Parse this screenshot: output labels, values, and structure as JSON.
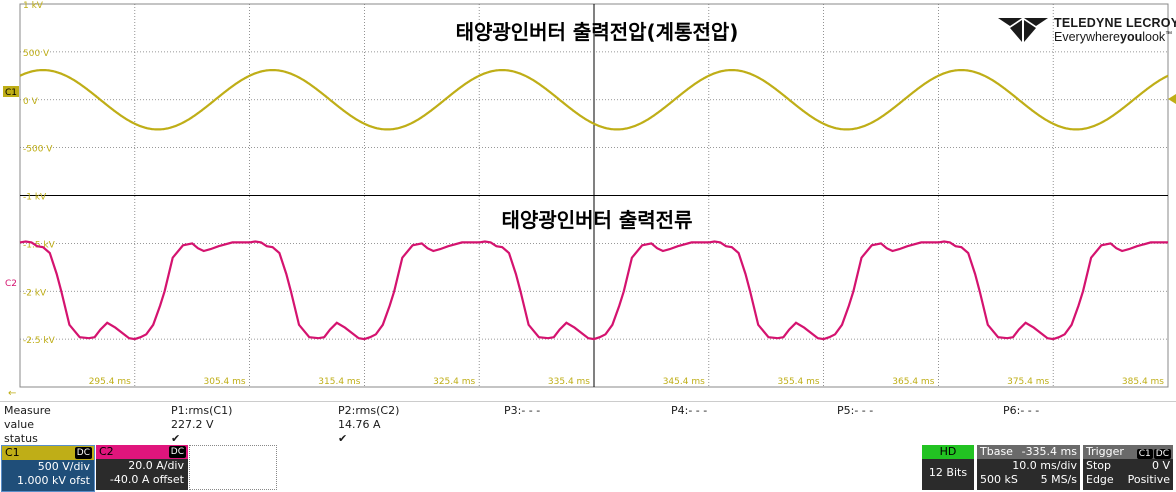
{
  "colors": {
    "c1": "#bfae17",
    "c2": "#d4136f",
    "grid": "#000000",
    "hd_green": "#22c322"
  },
  "titles": {
    "voltage": "태양광인버터 출력전압(계통전압)",
    "current": "태양광인버터 출력전류"
  },
  "logo": {
    "brand": "TELEDYNE LECROY",
    "tag_pre": "Everywhere",
    "tag_bold": "you",
    "tag_post": "look",
    "tm": "™",
    "icon": "teledyne-lecroy-logo-icon"
  },
  "y_labels_c1": [
    "1 kV",
    "500 V",
    "0 V",
    "-500 V",
    "-1 kV"
  ],
  "y_labels_c2": [
    "-1.5 kV",
    "-2 kV",
    "-2.5 kV"
  ],
  "x_labels": [
    "295.4 ms",
    "305.4 ms",
    "315.4 ms",
    "325.4 ms",
    "335.4 ms",
    "345.4 ms",
    "355.4 ms",
    "365.4 ms",
    "375.4 ms",
    "385.4 ms"
  ],
  "markers": {
    "c1": "C1",
    "c2": "C2"
  },
  "measure": {
    "labels": [
      "Measure",
      "value",
      "status"
    ],
    "params": [
      {
        "name": "P1:rms(C1)",
        "value": "227.2 V",
        "status": "✔"
      },
      {
        "name": "P2:rms(C2)",
        "value": "14.76 A",
        "status": "✔"
      },
      {
        "name": "P3:- - -",
        "value": "",
        "status": ""
      },
      {
        "name": "P4:- - -",
        "value": "",
        "status": ""
      },
      {
        "name": "P5:- - -",
        "value": "",
        "status": ""
      },
      {
        "name": "P6:- - -",
        "value": "",
        "status": ""
      }
    ]
  },
  "channels": {
    "c1": {
      "name": "C1",
      "coupling": "DC",
      "vdiv": "500 V/div",
      "offset": "1.000 kV ofst"
    },
    "c2": {
      "name": "C2",
      "coupling": "DC",
      "vdiv": "20.0 A/div",
      "offset": "-40.0 A offset"
    }
  },
  "hd": {
    "label": "HD",
    "bits": "12 Bits"
  },
  "timebase": {
    "label": "Tbase",
    "delay": "-335.4 ms",
    "tdiv": "10.0 ms/div",
    "samples": "500 kS",
    "rate": "5 MS/s"
  },
  "trigger": {
    "label": "Trigger",
    "source": "C1",
    "coupling": "DC",
    "mode": "Stop",
    "level": "0 V",
    "type": "Edge",
    "slope": "Positive"
  },
  "chart_data": [
    {
      "type": "line",
      "title": "태양광인버터 출력전압(계통전압)",
      "xlabel": "",
      "ylabel": "",
      "xlim": [
        285.4,
        385.4
      ],
      "ylim": [
        -1000,
        1000
      ],
      "series": [
        {
          "name": "C1",
          "x": [
            285.4,
            287.4,
            290.4,
            292.4,
            294.4,
            297.4,
            300.4,
            302.4,
            304.4,
            307.4,
            310.4,
            312.4,
            314.4,
            317.4,
            320.4,
            322.4,
            324.4,
            327.4,
            330.4,
            332.4,
            334.4,
            337.4,
            340.4,
            342.4,
            344.4,
            347.4,
            350.4,
            352.4,
            354.4,
            357.4,
            360.4,
            362.4,
            364.4,
            367.4,
            370.4,
            372.4,
            374.4,
            377.4,
            380.4,
            382.4,
            384.4,
            385.4
          ],
          "values": [
            240,
            310,
            240,
            0,
            -250,
            -310,
            -240,
            0,
            250,
            310,
            240,
            0,
            -250,
            -310,
            -240,
            0,
            250,
            310,
            240,
            0,
            -250,
            -310,
            -240,
            0,
            250,
            310,
            240,
            0,
            -250,
            -310,
            -240,
            0,
            250,
            310,
            240,
            0,
            -250,
            -310,
            -240,
            0,
            250,
            300
          ]
        }
      ]
    },
    {
      "type": "line",
      "title": "태양광인버터 출력전류",
      "xlabel": "",
      "ylabel": "",
      "xlim": [
        285.4,
        385.4
      ],
      "series": [
        {
          "name": "C2",
          "period_ms": 20,
          "x_phase": [
            0.0,
            0.5,
            1.0,
            1.5,
            2.0,
            2.6,
            3.2,
            3.6,
            4.3,
            5.2,
            6.0,
            6.5,
            7.0,
            7.6,
            8.3,
            9.5,
            10.0,
            10.5,
            11.0,
            11.6,
            12.2,
            12.6,
            13.3,
            14.2,
            15.0,
            15.5,
            16.0,
            16.6,
            17.3,
            18.5,
            20.0
          ],
          "values": [
            -1.49,
            -1.48,
            -1.49,
            -1.53,
            -1.54,
            -1.6,
            -1.82,
            -2.0,
            -2.35,
            -2.48,
            -2.49,
            -2.48,
            -2.4,
            -2.33,
            -2.38,
            -2.49,
            -2.5,
            -2.48,
            -2.45,
            -2.35,
            -2.15,
            -2.0,
            -1.65,
            -1.52,
            -1.5,
            -1.55,
            -1.58,
            -1.56,
            -1.53,
            -1.49,
            -1.49
          ],
          "x_start": 285.4
        }
      ]
    }
  ]
}
